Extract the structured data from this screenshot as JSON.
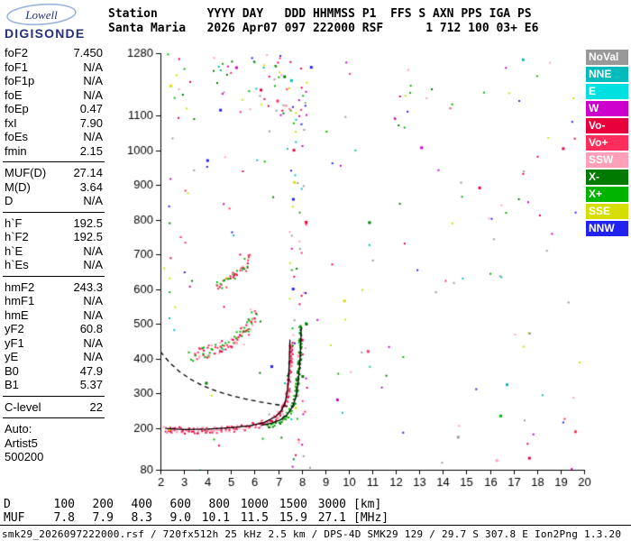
{
  "logo": {
    "line1": "Lowell",
    "line2": "DIGISONDE"
  },
  "header": {
    "line1": "Station       YYYY DAY   DDD HHMMSS P1  FFS S AXN PPS IGA PS",
    "line2": "Santa Maria   2026 Apr07 097 222000 RSF      1 712 100 03+ E6"
  },
  "params": {
    "groups": [
      {
        "rows": [
          {
            "label": "foF2",
            "value": "7.450"
          },
          {
            "label": "foF1",
            "value": "N/A"
          },
          {
            "label": "foF1p",
            "value": "N/A"
          },
          {
            "label": "foE",
            "value": "N/A"
          },
          {
            "label": "foEp",
            "value": "0.47"
          },
          {
            "label": "fxI",
            "value": "7.90"
          },
          {
            "label": "foEs",
            "value": "N/A"
          },
          {
            "label": "fmin",
            "value": "2.15"
          }
        ]
      },
      {
        "rows": [
          {
            "label": "MUF(D)",
            "value": "27.14"
          },
          {
            "label": "M(D)",
            "value": "3.64"
          },
          {
            "label": "D",
            "value": "N/A"
          }
        ]
      },
      {
        "rows": [
          {
            "label": "h`F",
            "value": "192.5"
          },
          {
            "label": "h`F2",
            "value": "192.5"
          },
          {
            "label": "h`E",
            "value": "N/A"
          },
          {
            "label": "h`Es",
            "value": "N/A"
          }
        ]
      },
      {
        "rows": [
          {
            "label": "hmF2",
            "value": "243.3"
          },
          {
            "label": "hmF1",
            "value": "N/A"
          },
          {
            "label": "hmE",
            "value": "N/A"
          },
          {
            "label": "yF2",
            "value": "60.8"
          },
          {
            "label": "yF1",
            "value": "N/A"
          },
          {
            "label": "yE",
            "value": "N/A"
          },
          {
            "label": "B0",
            "value": "47.9"
          },
          {
            "label": "B1",
            "value": "5.37"
          }
        ]
      },
      {
        "rows": [
          {
            "label": "C-level",
            "value": "22"
          }
        ]
      }
    ],
    "auto_label": "Auto:",
    "auto_lines": [
      "Artist5",
      "500200"
    ]
  },
  "legend": {
    "items": [
      {
        "label": "NoVal",
        "color": "#999999"
      },
      {
        "label": "NNE",
        "color": "#00BBBB"
      },
      {
        "label": "E",
        "color": "#00E0E0"
      },
      {
        "label": "W",
        "color": "#CC00CC"
      },
      {
        "label": "Vo-",
        "color": "#E8003D"
      },
      {
        "label": "Vo+",
        "color": "#FF2E5B"
      },
      {
        "label": "SSW",
        "color": "#FFA0B8"
      },
      {
        "label": "X-",
        "color": "#007A00"
      },
      {
        "label": "X+",
        "color": "#00B300"
      },
      {
        "label": "SSE",
        "color": "#D6DE00"
      },
      {
        "label": "NNW",
        "color": "#2222EE"
      }
    ]
  },
  "chart_data": {
    "type": "scatter",
    "title": "Digisonde ionogram, Santa Maria, 2026 Apr07 097 222000",
    "x_unit": "MHz",
    "y_unit": "km",
    "xlim": [
      2,
      20
    ],
    "ylim": [
      80,
      1280
    ],
    "x_ticks": [
      2,
      3,
      4,
      5,
      6,
      7,
      8,
      9,
      10,
      11,
      12,
      13,
      14,
      15,
      16,
      17,
      18,
      19,
      20
    ],
    "y_tick_labels": [
      1280,
      1100,
      1000,
      900,
      800,
      700,
      600,
      500,
      400,
      300,
      200,
      80
    ],
    "echo_traces": [
      {
        "name": "F2-O-mode-first-hop",
        "density": 3,
        "jitter": 3.5,
        "colors": [
          "#E8003D",
          "#FF2E5B",
          "#FFA0B8"
        ],
        "points": [
          [
            2.15,
            200
          ],
          [
            2.5,
            197
          ],
          [
            3.0,
            195
          ],
          [
            3.5,
            195
          ],
          [
            4.0,
            196
          ],
          [
            4.5,
            198
          ],
          [
            5.0,
            200
          ],
          [
            5.4,
            203
          ],
          [
            5.8,
            207
          ],
          [
            6.2,
            213
          ],
          [
            6.5,
            220
          ],
          [
            6.8,
            230
          ],
          [
            7.0,
            241
          ],
          [
            7.15,
            255
          ],
          [
            7.3,
            278
          ],
          [
            7.4,
            310
          ],
          [
            7.45,
            350
          ],
          [
            7.5,
            410
          ],
          [
            7.52,
            450
          ]
        ]
      },
      {
        "name": "F2-X-mode-first-hop",
        "density": 2,
        "jitter": 3,
        "colors": [
          "#00B300",
          "#007A00"
        ],
        "points": [
          [
            6.5,
            205
          ],
          [
            6.8,
            212
          ],
          [
            7.1,
            222
          ],
          [
            7.3,
            235
          ],
          [
            7.5,
            255
          ],
          [
            7.65,
            280
          ],
          [
            7.75,
            315
          ],
          [
            7.85,
            370
          ],
          [
            7.9,
            440
          ],
          [
            7.92,
            500
          ]
        ]
      },
      {
        "name": "second-hop",
        "density": 3,
        "jitter": 7,
        "colors": [
          "#FF2E5B",
          "#E8003D",
          "#FFA0B8",
          "#00B300"
        ],
        "points": [
          [
            3.3,
            412
          ],
          [
            3.6,
            416
          ],
          [
            4.0,
            424
          ],
          [
            4.4,
            433
          ],
          [
            4.8,
            444
          ],
          [
            5.1,
            455
          ],
          [
            5.4,
            470
          ],
          [
            5.6,
            485
          ],
          [
            5.8,
            505
          ],
          [
            5.95,
            535
          ]
        ]
      },
      {
        "name": "third-hop",
        "density": 2,
        "jitter": 5,
        "colors": [
          "#FF2E5B",
          "#E8003D",
          "#00B300"
        ],
        "points": [
          [
            4.3,
            612
          ],
          [
            4.7,
            620
          ],
          [
            5.0,
            632
          ],
          [
            5.3,
            648
          ],
          [
            5.5,
            665
          ],
          [
            5.65,
            685
          ],
          [
            5.75,
            705
          ]
        ]
      }
    ],
    "fitted_lines": [
      {
        "name": "artist-O-trace",
        "style": "solid",
        "points": [
          [
            2.2,
            199
          ],
          [
            3.0,
            196
          ],
          [
            4.0,
            197
          ],
          [
            5.0,
            201
          ],
          [
            5.8,
            207
          ],
          [
            6.4,
            216
          ],
          [
            6.9,
            233
          ],
          [
            7.15,
            252
          ],
          [
            7.3,
            275
          ],
          [
            7.4,
            308
          ],
          [
            7.45,
            350
          ],
          [
            7.49,
            420
          ],
          [
            7.5,
            455
          ]
        ]
      },
      {
        "name": "artist-X-trace",
        "style": "solid",
        "points": [
          [
            6.3,
            208
          ],
          [
            6.7,
            214
          ],
          [
            7.1,
            224
          ],
          [
            7.4,
            240
          ],
          [
            7.6,
            260
          ],
          [
            7.75,
            288
          ],
          [
            7.85,
            330
          ],
          [
            7.93,
            395
          ],
          [
            7.97,
            460
          ],
          [
            7.98,
            490
          ]
        ]
      },
      {
        "name": "muf-transmission-curve",
        "style": "dashed",
        "points": [
          [
            2.0,
            420
          ],
          [
            2.4,
            388
          ],
          [
            2.8,
            363
          ],
          [
            3.3,
            340
          ],
          [
            3.8,
            322
          ],
          [
            4.4,
            306
          ],
          [
            5.0,
            294
          ],
          [
            5.6,
            284
          ],
          [
            6.2,
            276
          ],
          [
            6.8,
            269
          ],
          [
            7.3,
            264
          ],
          [
            7.6,
            262
          ]
        ]
      }
    ],
    "noise": {
      "seed": 97,
      "colors": [
        "#E8003D",
        "#FF2E5B",
        "#00B300",
        "#007A00",
        "#00BBBB",
        "#CC00CC",
        "#2222EE",
        "#FFA0B8",
        "#D6DE00",
        "#999999"
      ],
      "regions": [
        {
          "x": [
            2,
            20
          ],
          "y": [
            80,
            1280
          ],
          "count": 150
        },
        {
          "x": [
            4.2,
            8.2
          ],
          "y": [
            1100,
            1280
          ],
          "count": 55
        },
        {
          "x": [
            7.45,
            8.2
          ],
          "y": [
            80,
            1280
          ],
          "count": 75
        },
        {
          "x": [
            2.2,
            3.2
          ],
          "y": [
            500,
            1280
          ],
          "count": 18
        },
        {
          "x": [
            11.9,
            12.6
          ],
          "y": [
            1050,
            1280
          ],
          "count": 10
        }
      ]
    }
  },
  "dmuf": {
    "d_label": "D",
    "muf_label": "MUF",
    "distances": [
      "100",
      "200",
      "400",
      "600",
      "800",
      "1000",
      "1500",
      "3000"
    ],
    "d_unit": "[km]",
    "mufs": [
      "7.8",
      "7.9",
      "8.3",
      "9.0",
      "10.1",
      "11.5",
      "15.9",
      "27.1"
    ],
    "muf_unit": "[MHz]"
  },
  "statusbar": {
    "text": "smk29_2026097222000.rsf / 720fx512h 25 kHz 2.5 km / DPS-4D SMK29 129 / 29.7 S 307.8 E Ion2Png 1.3.20"
  }
}
